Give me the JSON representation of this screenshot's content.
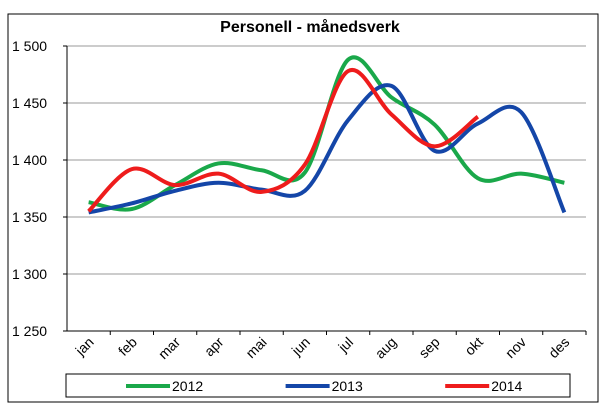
{
  "chart_data": {
    "type": "line",
    "title": "Personell - månedsverk",
    "categories": [
      "jan",
      "feb",
      "mar",
      "apr",
      "mai",
      "jun",
      "jul",
      "aug",
      "sep",
      "okt",
      "nov",
      "des"
    ],
    "series": [
      {
        "name": "2012",
        "color": "#1aa84a",
        "values": [
          1363,
          1357,
          1378,
          1397,
          1391,
          1389,
          1488,
          1455,
          1431,
          1384,
          1388,
          1380
        ]
      },
      {
        "name": "2013",
        "color": "#1446a8",
        "values": [
          1354,
          1362,
          1373,
          1380,
          1374,
          1373,
          1435,
          1465,
          1408,
          1432,
          1442,
          1354
        ]
      },
      {
        "name": "2014",
        "color": "#ee1c1c",
        "values": [
          1355,
          1392,
          1378,
          1388,
          1372,
          1396,
          1478,
          1440,
          1412,
          1438,
          null,
          null
        ]
      }
    ],
    "ylim": [
      1250,
      1500
    ],
    "yticks": [
      {
        "value": 1250,
        "label": "1 250"
      },
      {
        "value": 1300,
        "label": "1 300"
      },
      {
        "value": 1350,
        "label": "1 350"
      },
      {
        "value": 1400,
        "label": "1 400"
      },
      {
        "value": 1450,
        "label": "1 450"
      },
      {
        "value": 1500,
        "label": "1 500"
      }
    ],
    "grid": true
  }
}
